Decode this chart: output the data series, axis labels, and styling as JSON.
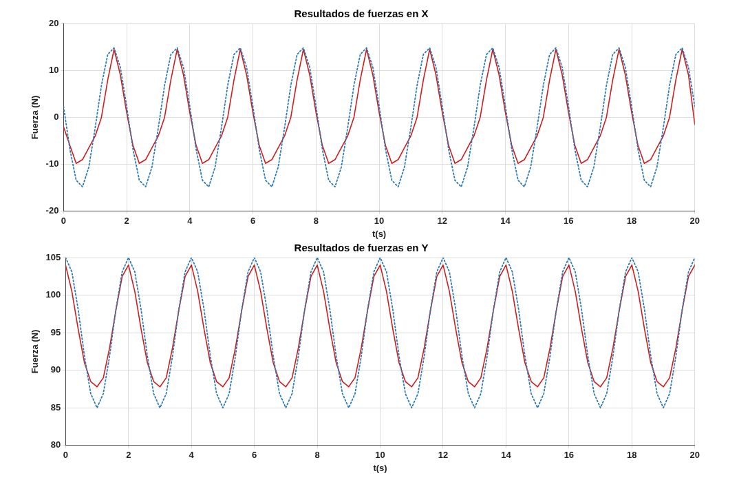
{
  "chart_data": [
    {
      "type": "line",
      "title": "Resultados de fuerzas en X",
      "xlabel": "t(s)",
      "ylabel": "Fuerza (N)",
      "grid": true,
      "legend": false,
      "marker": "none",
      "x": [
        0,
        0.2,
        0.4,
        0.6,
        0.8,
        1,
        1.2,
        1.4,
        1.6,
        1.8,
        2,
        2.2,
        2.4,
        2.6,
        2.8,
        3,
        3.2,
        3.4,
        3.6,
        3.8,
        4,
        4.2,
        4.4,
        4.6,
        4.8,
        5,
        5.2,
        5.4,
        5.6,
        5.8,
        6,
        6.2,
        6.4,
        6.6,
        6.8,
        7,
        7.2,
        7.4,
        7.6,
        7.8,
        8,
        8.2,
        8.4,
        8.6,
        8.8,
        9,
        9.2,
        9.4,
        9.6,
        9.8,
        10,
        10.2,
        10.4,
        10.6,
        10.8,
        11,
        11.2,
        11.4,
        11.6,
        11.8,
        12,
        12.2,
        12.4,
        12.6,
        12.8,
        13,
        13.2,
        13.4,
        13.6,
        13.8,
        14,
        14.2,
        14.4,
        14.6,
        14.8,
        15,
        15.2,
        15.4,
        15.6,
        15.8,
        16,
        16.2,
        16.4,
        16.6,
        16.8,
        17,
        17.2,
        17.4,
        17.6,
        17.8,
        18,
        18.2,
        18.4,
        18.6,
        18.8,
        19,
        19.2,
        19.4,
        19.6,
        19.8,
        20
      ],
      "xlim": [
        0,
        20
      ],
      "xticks": [
        0,
        2,
        4,
        6,
        8,
        10,
        12,
        14,
        16,
        18,
        20
      ],
      "ylim": [
        -20,
        20
      ],
      "yticks": [
        -20,
        -10,
        0,
        10,
        20
      ],
      "series": [
        {
          "color": "#2b7bb9",
          "line_style": "dotted",
          "values": [
            2.3,
            -6.8,
            -13.4,
            -14.8,
            -10.6,
            -2.3,
            6.8,
            13.4,
            14.8,
            10.6,
            2.3,
            -6.8,
            -13.4,
            -14.8,
            -10.6,
            -2.3,
            6.8,
            13.4,
            14.8,
            10.6,
            2.3,
            -6.8,
            -13.4,
            -14.8,
            -10.6,
            -2.3,
            6.8,
            13.4,
            14.8,
            10.6,
            2.3,
            -6.8,
            -13.4,
            -14.8,
            -10.6,
            -2.3,
            6.8,
            13.4,
            14.8,
            10.6,
            2.3,
            -6.8,
            -13.4,
            -14.8,
            -10.6,
            -2.3,
            6.8,
            13.4,
            14.8,
            10.6,
            2.3,
            -6.8,
            -13.4,
            -14.8,
            -10.6,
            -2.3,
            6.8,
            13.4,
            14.8,
            10.6,
            2.3,
            -6.8,
            -13.4,
            -14.8,
            -10.6,
            -2.3,
            6.8,
            13.4,
            14.8,
            10.6,
            2.3,
            -6.8,
            -13.4,
            -14.8,
            -10.6,
            -2.3,
            6.8,
            13.4,
            14.8,
            10.6,
            2.3,
            -6.8,
            -13.4,
            -14.8,
            -10.6,
            -2.3,
            6.8,
            13.4,
            14.8,
            10.6,
            2.3,
            -6.8,
            -13.4,
            -14.8,
            -10.6,
            -2.3,
            6.8,
            13.4,
            14.8,
            10.6,
            2.3
          ]
        },
        {
          "color": "#d01c1c",
          "line_style": "solid",
          "values": [
            -2,
            -6,
            -9.8,
            -9,
            -6.5,
            -4,
            0,
            8,
            14.5,
            9,
            1,
            -6,
            -9.8,
            -9,
            -6.5,
            -4,
            0,
            8,
            14.5,
            9,
            1,
            -6,
            -9.8,
            -9,
            -6.5,
            -4,
            0,
            8,
            14.5,
            9,
            1,
            -6,
            -9.8,
            -9,
            -6.5,
            -4,
            0,
            8,
            14.5,
            9,
            1,
            -6,
            -9.8,
            -9,
            -6.5,
            -4,
            0,
            8,
            14.5,
            9,
            1,
            -6,
            -9.8,
            -9,
            -6.5,
            -4,
            0,
            8,
            14.5,
            9,
            1,
            -6,
            -9.8,
            -9,
            -6.5,
            -4,
            0,
            8,
            14.5,
            9,
            1,
            -6,
            -9.8,
            -9,
            -6.5,
            -4,
            0,
            8,
            14.5,
            9,
            1,
            -6,
            -9.8,
            -9,
            -6.5,
            -4,
            0,
            8,
            14.5,
            9,
            1,
            -6,
            -9.8,
            -9,
            -6.5,
            -4,
            0,
            8,
            14.5,
            9,
            -1.5
          ]
        }
      ]
    },
    {
      "type": "line",
      "title": "Resultados de fuerzas en Y",
      "xlabel": "t(s)",
      "ylabel": "Fuerza (N)",
      "grid": true,
      "legend": false,
      "marker": "none",
      "x": [
        0,
        0.2,
        0.4,
        0.6,
        0.8,
        1,
        1.2,
        1.4,
        1.6,
        1.8,
        2,
        2.2,
        2.4,
        2.6,
        2.8,
        3,
        3.2,
        3.4,
        3.6,
        3.8,
        4,
        4.2,
        4.4,
        4.6,
        4.8,
        5,
        5.2,
        5.4,
        5.6,
        5.8,
        6,
        6.2,
        6.4,
        6.6,
        6.8,
        7,
        7.2,
        7.4,
        7.6,
        7.8,
        8,
        8.2,
        8.4,
        8.6,
        8.8,
        9,
        9.2,
        9.4,
        9.6,
        9.8,
        10,
        10.2,
        10.4,
        10.6,
        10.8,
        11,
        11.2,
        11.4,
        11.6,
        11.8,
        12,
        12.2,
        12.4,
        12.6,
        12.8,
        13,
        13.2,
        13.4,
        13.6,
        13.8,
        14,
        14.2,
        14.4,
        14.6,
        14.8,
        15,
        15.2,
        15.4,
        15.6,
        15.8,
        16,
        16.2,
        16.4,
        16.6,
        16.8,
        17,
        17.2,
        17.4,
        17.6,
        17.8,
        18,
        18.2,
        18.4,
        18.6,
        18.8,
        19,
        19.2,
        19.4,
        19.6,
        19.8,
        20
      ],
      "xlim": [
        0,
        20
      ],
      "xticks": [
        0,
        2,
        4,
        6,
        8,
        10,
        12,
        14,
        16,
        18,
        20
      ],
      "ylim": [
        80,
        105
      ],
      "yticks": [
        80,
        85,
        90,
        95,
        100,
        105
      ],
      "series": [
        {
          "color": "#2b7bb9",
          "line_style": "dotted",
          "values": [
            105,
            103.1,
            98.1,
            91.9,
            86.9,
            85,
            86.9,
            91.9,
            98.1,
            103.1,
            105,
            103.1,
            98.1,
            91.9,
            86.9,
            85,
            86.9,
            91.9,
            98.1,
            103.1,
            105,
            103.1,
            98.1,
            91.9,
            86.9,
            85,
            86.9,
            91.9,
            98.1,
            103.1,
            105,
            103.1,
            98.1,
            91.9,
            86.9,
            85,
            86.9,
            91.9,
            98.1,
            103.1,
            105,
            103.1,
            98.1,
            91.9,
            86.9,
            85,
            86.9,
            91.9,
            98.1,
            103.1,
            105,
            103.1,
            98.1,
            91.9,
            86.9,
            85,
            86.9,
            91.9,
            98.1,
            103.1,
            105,
            103.1,
            98.1,
            91.9,
            86.9,
            85,
            86.9,
            91.9,
            98.1,
            103.1,
            105,
            103.1,
            98.1,
            91.9,
            86.9,
            85,
            86.9,
            91.9,
            98.1,
            103.1,
            105,
            103.1,
            98.1,
            91.9,
            86.9,
            85,
            86.9,
            91.9,
            98.1,
            103.1,
            105,
            103.1,
            98.1,
            91.9,
            86.9,
            85,
            86.9,
            91.9,
            98.1,
            103.1,
            105
          ]
        },
        {
          "color": "#d01c1c",
          "line_style": "solid",
          "values": [
            104,
            100.5,
            95.5,
            91,
            88.5,
            87.8,
            89,
            93,
            98,
            102.5,
            104,
            100.5,
            95.5,
            91,
            88.5,
            87.8,
            89,
            93,
            98,
            102.5,
            104,
            100.5,
            95.5,
            91,
            88.5,
            87.8,
            89,
            93,
            98,
            102.5,
            104,
            100.5,
            95.5,
            91,
            88.5,
            87.8,
            89,
            93,
            98,
            102.5,
            104,
            100.5,
            95.5,
            91,
            88.5,
            87.8,
            89,
            93,
            98,
            102.5,
            104,
            100.5,
            95.5,
            91,
            88.5,
            87.8,
            89,
            93,
            98,
            102.5,
            104,
            100.5,
            95.5,
            91,
            88.5,
            87.8,
            89,
            93,
            98,
            102.5,
            104,
            100.5,
            95.5,
            91,
            88.5,
            87.8,
            89,
            93,
            98,
            102.5,
            104,
            100.5,
            95.5,
            91,
            88.5,
            87.8,
            89,
            93,
            98,
            102.5,
            104,
            100.5,
            95.5,
            91,
            88.5,
            87.8,
            89,
            93,
            98,
            102.5,
            104
          ]
        }
      ]
    }
  ]
}
